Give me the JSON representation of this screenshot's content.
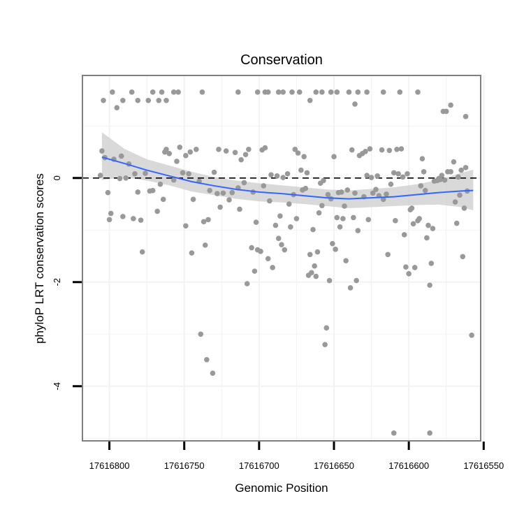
{
  "chart_data": {
    "type": "scatter",
    "title": "Conservation",
    "xlabel": "Genomic Position",
    "ylabel": "phyloP LRT conservation scores",
    "x_reversed": true,
    "xlim": [
      17616818,
      17616552
    ],
    "ylim": [
      -5.05,
      1.97
    ],
    "x_ticks": [
      17616800,
      17616750,
      17616700,
      17616650,
      17616600,
      17616550
    ],
    "x_tick_labels": [
      "17616800",
      "17616750",
      "17616700",
      "17616650",
      "17616600",
      "17616550"
    ],
    "y_ticks": [
      0,
      -2,
      -4
    ],
    "y_tick_labels": [
      "0",
      "-2",
      "-4"
    ],
    "reference_line": {
      "y": 0,
      "style": "dashed"
    },
    "colors": {
      "points": "#999999",
      "smooth_line": "#3366ff",
      "ribbon": "#cccccc",
      "panel_border": "#7f7f7f",
      "grid": "#f2f2f2"
    },
    "points": [
      {
        "x": 17616804,
        "y": 1.49
      },
      {
        "x": 17616798,
        "y": 1.65
      },
      {
        "x": 17616795,
        "y": 1.35
      },
      {
        "x": 17616791,
        "y": 1.49
      },
      {
        "x": 17616785,
        "y": 1.65
      },
      {
        "x": 17616781,
        "y": 1.49
      },
      {
        "x": 17616774,
        "y": 1.49
      },
      {
        "x": 17616771,
        "y": 1.65
      },
      {
        "x": 17616767,
        "y": 1.49
      },
      {
        "x": 17616765,
        "y": 1.65
      },
      {
        "x": 17616762,
        "y": 1.49
      },
      {
        "x": 17616757,
        "y": 1.65
      },
      {
        "x": 17616754,
        "y": 1.65
      },
      {
        "x": 17616738,
        "y": 1.65
      },
      {
        "x": 17616714,
        "y": 1.65
      },
      {
        "x": 17616701,
        "y": 1.65
      },
      {
        "x": 17616696,
        "y": 1.65
      },
      {
        "x": 17616694,
        "y": 1.65
      },
      {
        "x": 17616687,
        "y": 1.65
      },
      {
        "x": 17616684,
        "y": 1.65
      },
      {
        "x": 17616678,
        "y": 1.65
      },
      {
        "x": 17616673,
        "y": 1.65
      },
      {
        "x": 17616666,
        "y": 1.49
      },
      {
        "x": 17616662,
        "y": 1.65
      },
      {
        "x": 17616658,
        "y": 1.65
      },
      {
        "x": 17616652,
        "y": 1.65
      },
      {
        "x": 17616648,
        "y": 1.65
      },
      {
        "x": 17616640,
        "y": 1.65
      },
      {
        "x": 17616628,
        "y": 1.65
      },
      {
        "x": 17616617,
        "y": 1.65
      },
      {
        "x": 17616606,
        "y": 1.65
      },
      {
        "x": 17616636,
        "y": 1.42
      },
      {
        "x": 17616634,
        "y": 1.65
      },
      {
        "x": 17616577,
        "y": 1.28
      },
      {
        "x": 17616575,
        "y": 1.28
      },
      {
        "x": 17616572,
        "y": 1.4
      },
      {
        "x": 17616562,
        "y": 1.18
      },
      {
        "x": 17616594,
        "y": 1.65
      },
      {
        "x": 17616806,
        "y": 0.05
      },
      {
        "x": 17616805,
        "y": 0.52
      },
      {
        "x": 17616803,
        "y": 0.39
      },
      {
        "x": 17616801,
        "y": -0.28
      },
      {
        "x": 17616799,
        "y": -0.68
      },
      {
        "x": 17616800,
        "y": -0.8
      },
      {
        "x": 17616797,
        "y": 0.36
      },
      {
        "x": 17616793,
        "y": -0.01
      },
      {
        "x": 17616792,
        "y": 0.42
      },
      {
        "x": 17616791,
        "y": -0.74
      },
      {
        "x": 17616789,
        "y": 0.0
      },
      {
        "x": 17616787,
        "y": 0.27
      },
      {
        "x": 17616784,
        "y": -0.78
      },
      {
        "x": 17616783,
        "y": 0.08
      },
      {
        "x": 17616781,
        "y": -0.27
      },
      {
        "x": 17616779,
        "y": -0.81
      },
      {
        "x": 17616778,
        "y": -1.42
      },
      {
        "x": 17616776,
        "y": 0.09
      },
      {
        "x": 17616773,
        "y": -0.25
      },
      {
        "x": 17616771,
        "y": -0.24
      },
      {
        "x": 17616768,
        "y": -0.64
      },
      {
        "x": 17616766,
        "y": -0.12
      },
      {
        "x": 17616764,
        "y": -0.41
      },
      {
        "x": 17616763,
        "y": 0.5
      },
      {
        "x": 17616762,
        "y": 0.55
      },
      {
        "x": 17616760,
        "y": 0.47
      },
      {
        "x": 17616757,
        "y": -0.04
      },
      {
        "x": 17616755,
        "y": 0.32
      },
      {
        "x": 17616753,
        "y": 0.59
      },
      {
        "x": 17616751,
        "y": 0.1
      },
      {
        "x": 17616749,
        "y": -0.92
      },
      {
        "x": 17616749,
        "y": 0.43
      },
      {
        "x": 17616746,
        "y": 0.5
      },
      {
        "x": 17616747,
        "y": 0.08
      },
      {
        "x": 17616745,
        "y": -1.44
      },
      {
        "x": 17616744,
        "y": -0.41
      },
      {
        "x": 17616742,
        "y": 0.55
      },
      {
        "x": 17616740,
        "y": -0.06
      },
      {
        "x": 17616739,
        "y": -3.0
      },
      {
        "x": 17616737,
        "y": -0.84
      },
      {
        "x": 17616736,
        "y": -1.29
      },
      {
        "x": 17616735,
        "y": -3.49
      },
      {
        "x": 17616734,
        "y": -0.8
      },
      {
        "x": 17616733,
        "y": -0.24
      },
      {
        "x": 17616731,
        "y": -3.75
      },
      {
        "x": 17616730,
        "y": 0.11
      },
      {
        "x": 17616728,
        "y": -0.3
      },
      {
        "x": 17616727,
        "y": 0.55
      },
      {
        "x": 17616726,
        "y": -0.56
      },
      {
        "x": 17616724,
        "y": -0.29
      },
      {
        "x": 17616722,
        "y": 0.52
      },
      {
        "x": 17616720,
        "y": -0.42
      },
      {
        "x": 17616718,
        "y": -0.28
      },
      {
        "x": 17616716,
        "y": 0.49
      },
      {
        "x": 17616714,
        "y": -0.19
      },
      {
        "x": 17616713,
        "y": -0.6
      },
      {
        "x": 17616712,
        "y": 0.35
      },
      {
        "x": 17616710,
        "y": -0.09
      },
      {
        "x": 17616709,
        "y": 0.45
      },
      {
        "x": 17616708,
        "y": -2.03
      },
      {
        "x": 17616707,
        "y": 0.55
      },
      {
        "x": 17616705,
        "y": -1.34
      },
      {
        "x": 17616704,
        "y": -0.27
      },
      {
        "x": 17616703,
        "y": -1.79
      },
      {
        "x": 17616702,
        "y": -0.85
      },
      {
        "x": 17616701,
        "y": -1.38
      },
      {
        "x": 17616699,
        "y": -1.41
      },
      {
        "x": 17616698,
        "y": 0.54
      },
      {
        "x": 17616697,
        "y": -0.15
      },
      {
        "x": 17616696,
        "y": 0.58
      },
      {
        "x": 17616694,
        "y": -1.55
      },
      {
        "x": 17616693,
        "y": -0.44
      },
      {
        "x": 17616692,
        "y": 0.06
      },
      {
        "x": 17616691,
        "y": -1.72
      },
      {
        "x": 17616689,
        "y": -0.91
      },
      {
        "x": 17616688,
        "y": 0.04
      },
      {
        "x": 17616687,
        "y": -1.16
      },
      {
        "x": 17616686,
        "y": -0.73
      },
      {
        "x": 17616685,
        "y": -1.28
      },
      {
        "x": 17616684,
        "y": 0.01
      },
      {
        "x": 17616683,
        "y": -1.38
      },
      {
        "x": 17616681,
        "y": 0.08
      },
      {
        "x": 17616680,
        "y": -0.5
      },
      {
        "x": 17616679,
        "y": -0.94
      },
      {
        "x": 17616677,
        "y": -0.32
      },
      {
        "x": 17616676,
        "y": 0.55
      },
      {
        "x": 17616675,
        "y": -0.78
      },
      {
        "x": 17616674,
        "y": 0.48
      },
      {
        "x": 17616672,
        "y": 0.15
      },
      {
        "x": 17616671,
        "y": -0.23
      },
      {
        "x": 17616670,
        "y": 0.41
      },
      {
        "x": 17616669,
        "y": -0.2
      },
      {
        "x": 17616668,
        "y": 0.1
      },
      {
        "x": 17616667,
        "y": -1.87
      },
      {
        "x": 17616666,
        "y": -1.47
      },
      {
        "x": 17616665,
        "y": -1.82
      },
      {
        "x": 17616664,
        "y": -0.99
      },
      {
        "x": 17616663,
        "y": -1.69
      },
      {
        "x": 17616662,
        "y": -1.89
      },
      {
        "x": 17616661,
        "y": -1.42
      },
      {
        "x": 17616660,
        "y": -0.67
      },
      {
        "x": 17616659,
        "y": -0.1
      },
      {
        "x": 17616658,
        "y": -0.53
      },
      {
        "x": 17616657,
        "y": -0.05
      },
      {
        "x": 17616656,
        "y": -3.2
      },
      {
        "x": 17616655,
        "y": -2.88
      },
      {
        "x": 17616654,
        "y": -0.32
      },
      {
        "x": 17616653,
        "y": -1.97
      },
      {
        "x": 17616652,
        "y": -0.4
      },
      {
        "x": 17616651,
        "y": -1.26
      },
      {
        "x": 17616650,
        "y": 0.41
      },
      {
        "x": 17616649,
        "y": -1.37
      },
      {
        "x": 17616648,
        "y": -0.76
      },
      {
        "x": 17616647,
        "y": -0.28
      },
      {
        "x": 17616646,
        "y": -0.94
      },
      {
        "x": 17616645,
        "y": -0.27
      },
      {
        "x": 17616644,
        "y": -0.78
      },
      {
        "x": 17616643,
        "y": -0.54
      },
      {
        "x": 17616642,
        "y": -1.59
      },
      {
        "x": 17616641,
        "y": -0.23
      },
      {
        "x": 17616639,
        "y": -2.11
      },
      {
        "x": 17616638,
        "y": 0.54
      },
      {
        "x": 17616637,
        "y": -0.76
      },
      {
        "x": 17616636,
        "y": -0.29
      },
      {
        "x": 17616635,
        "y": -1.97
      },
      {
        "x": 17616634,
        "y": -1.01
      },
      {
        "x": 17616633,
        "y": 0.43
      },
      {
        "x": 17616631,
        "y": 0.47
      },
      {
        "x": 17616630,
        "y": -0.36
      },
      {
        "x": 17616629,
        "y": 0.51
      },
      {
        "x": 17616628,
        "y": 0.05
      },
      {
        "x": 17616627,
        "y": -0.8
      },
      {
        "x": 17616626,
        "y": 0.56
      },
      {
        "x": 17616625,
        "y": 0.01
      },
      {
        "x": 17616624,
        "y": -0.29
      },
      {
        "x": 17616622,
        "y": -0.22
      },
      {
        "x": 17616621,
        "y": 0.04
      },
      {
        "x": 17616620,
        "y": -0.34
      },
      {
        "x": 17616618,
        "y": 0.54
      },
      {
        "x": 17616617,
        "y": -0.41
      },
      {
        "x": 17616615,
        "y": -0.31
      },
      {
        "x": 17616614,
        "y": -1.47
      },
      {
        "x": 17616613,
        "y": 0.53
      },
      {
        "x": 17616612,
        "y": -0.12
      },
      {
        "x": 17616610,
        "y": 0.1
      },
      {
        "x": 17616609,
        "y": -0.82
      },
      {
        "x": 17616608,
        "y": 0.55
      },
      {
        "x": 17616607,
        "y": 0.08
      },
      {
        "x": 17616605,
        "y": 0.56
      },
      {
        "x": 17616604,
        "y": 0.02
      },
      {
        "x": 17616603,
        "y": -1.09
      },
      {
        "x": 17616602,
        "y": -1.71
      },
      {
        "x": 17616601,
        "y": 0.08
      },
      {
        "x": 17616600,
        "y": -1.84
      },
      {
        "x": 17616599,
        "y": -0.61
      },
      {
        "x": 17616598,
        "y": -0.58
      },
      {
        "x": 17616597,
        "y": -0.88
      },
      {
        "x": 17616596,
        "y": -1.72
      },
      {
        "x": 17616594,
        "y": -0.82
      },
      {
        "x": 17616593,
        "y": -0.78
      },
      {
        "x": 17616592,
        "y": -0.15
      },
      {
        "x": 17616591,
        "y": 0.37
      },
      {
        "x": 17616590,
        "y": 0.12
      },
      {
        "x": 17616589,
        "y": -0.24
      },
      {
        "x": 17616588,
        "y": -1.15
      },
      {
        "x": 17616587,
        "y": -0.91
      },
      {
        "x": 17616586,
        "y": -2.06
      },
      {
        "x": 17616585,
        "y": -1.64
      },
      {
        "x": 17616584,
        "y": -0.97
      },
      {
        "x": 17616583,
        "y": -0.06
      },
      {
        "x": 17616581,
        "y": -0.05
      },
      {
        "x": 17616580,
        "y": -0.01
      },
      {
        "x": 17616579,
        "y": -0.03
      },
      {
        "x": 17616578,
        "y": 0.05
      },
      {
        "x": 17616576,
        "y": -0.04
      },
      {
        "x": 17616574,
        "y": 0.12
      },
      {
        "x": 17616572,
        "y": 0.12
      },
      {
        "x": 17616570,
        "y": 0.31
      },
      {
        "x": 17616569,
        "y": -0.46
      },
      {
        "x": 17616568,
        "y": -0.87
      },
      {
        "x": 17616567,
        "y": 0.02
      },
      {
        "x": 17616566,
        "y": -0.33
      },
      {
        "x": 17616565,
        "y": 0.15
      },
      {
        "x": 17616564,
        "y": -1.51
      },
      {
        "x": 17616563,
        "y": -0.58
      },
      {
        "x": 17616562,
        "y": 0.2
      },
      {
        "x": 17616561,
        "y": -0.25
      },
      {
        "x": 17616558,
        "y": -3.02
      },
      {
        "x": 17616586,
        "y": -4.9
      },
      {
        "x": 17616610,
        "y": -4.9
      }
    ],
    "smooth_line": [
      {
        "x": 17616805,
        "y": 0.4
      },
      {
        "x": 17616790,
        "y": 0.28
      },
      {
        "x": 17616775,
        "y": 0.15
      },
      {
        "x": 17616760,
        "y": 0.04
      },
      {
        "x": 17616745,
        "y": -0.07
      },
      {
        "x": 17616730,
        "y": -0.15
      },
      {
        "x": 17616715,
        "y": -0.22
      },
      {
        "x": 17616700,
        "y": -0.27
      },
      {
        "x": 17616685,
        "y": -0.3
      },
      {
        "x": 17616670,
        "y": -0.34
      },
      {
        "x": 17616655,
        "y": -0.38
      },
      {
        "x": 17616640,
        "y": -0.4
      },
      {
        "x": 17616625,
        "y": -0.38
      },
      {
        "x": 17616610,
        "y": -0.36
      },
      {
        "x": 17616595,
        "y": -0.32
      },
      {
        "x": 17616580,
        "y": -0.28
      },
      {
        "x": 17616565,
        "y": -0.25
      },
      {
        "x": 17616557,
        "y": -0.24
      }
    ],
    "ribbon_upper": [
      {
        "x": 17616805,
        "y": 0.88
      },
      {
        "x": 17616790,
        "y": 0.56
      },
      {
        "x": 17616775,
        "y": 0.36
      },
      {
        "x": 17616760,
        "y": 0.24
      },
      {
        "x": 17616745,
        "y": 0.12
      },
      {
        "x": 17616730,
        "y": 0.02
      },
      {
        "x": 17616715,
        "y": -0.05
      },
      {
        "x": 17616700,
        "y": -0.1
      },
      {
        "x": 17616685,
        "y": -0.14
      },
      {
        "x": 17616670,
        "y": -0.18
      },
      {
        "x": 17616655,
        "y": -0.22
      },
      {
        "x": 17616640,
        "y": -0.24
      },
      {
        "x": 17616625,
        "y": -0.21
      },
      {
        "x": 17616610,
        "y": -0.18
      },
      {
        "x": 17616595,
        "y": -0.12
      },
      {
        "x": 17616580,
        "y": -0.04
      },
      {
        "x": 17616565,
        "y": 0.1
      },
      {
        "x": 17616557,
        "y": 0.16
      }
    ],
    "ribbon_lower": [
      {
        "x": 17616805,
        "y": -0.04
      },
      {
        "x": 17616790,
        "y": 0.02
      },
      {
        "x": 17616775,
        "y": -0.05
      },
      {
        "x": 17616760,
        "y": -0.14
      },
      {
        "x": 17616745,
        "y": -0.26
      },
      {
        "x": 17616730,
        "y": -0.33
      },
      {
        "x": 17616715,
        "y": -0.4
      },
      {
        "x": 17616700,
        "y": -0.45
      },
      {
        "x": 17616685,
        "y": -0.47
      },
      {
        "x": 17616670,
        "y": -0.5
      },
      {
        "x": 17616655,
        "y": -0.54
      },
      {
        "x": 17616640,
        "y": -0.58
      },
      {
        "x": 17616625,
        "y": -0.56
      },
      {
        "x": 17616610,
        "y": -0.54
      },
      {
        "x": 17616595,
        "y": -0.52
      },
      {
        "x": 17616580,
        "y": -0.51
      },
      {
        "x": 17616565,
        "y": -0.56
      },
      {
        "x": 17616557,
        "y": -0.62
      }
    ]
  }
}
